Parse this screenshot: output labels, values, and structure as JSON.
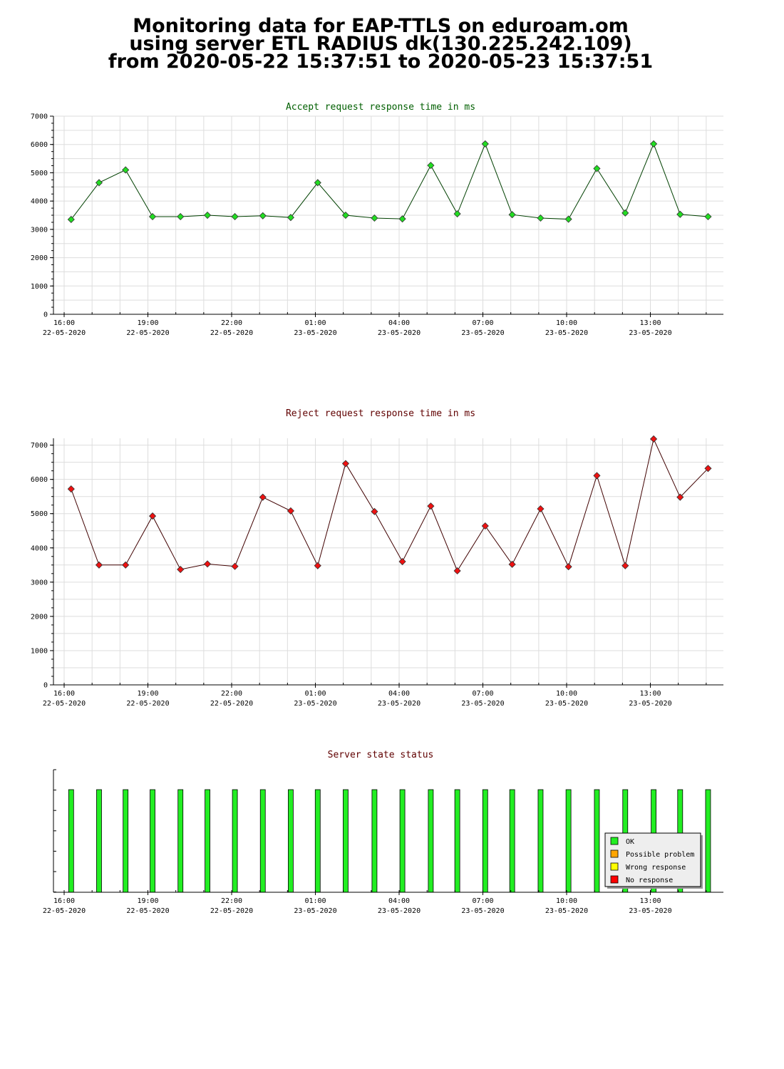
{
  "header": {
    "title_lines": [
      "Monitoring data for EAP-TTLS on eduroam.om",
      "using server ETL RADIUS dk(130.225.242.109)",
      "from 2020-05-22 15:37:51 to 2020-05-23 15:37:51"
    ]
  },
  "colors": {
    "accept_title": "#005f00",
    "accept_line": "#004000",
    "accept_marker": "#22dd22",
    "reject_title": "#600000",
    "reject_line": "#400000",
    "reject_marker": "#ee1111",
    "status_title": "#600000",
    "ok": "#22ee22",
    "possible_problem": "#ffa500",
    "wrong_response": "#ffff00",
    "no_response": "#ff0000",
    "grid": "#dddddd"
  },
  "time_axis": {
    "ticks": [
      {
        "time": "16:00",
        "date": "22-05-2020"
      },
      {
        "time": "19:00",
        "date": "22-05-2020"
      },
      {
        "time": "22:00",
        "date": "22-05-2020"
      },
      {
        "time": "01:00",
        "date": "23-05-2020"
      },
      {
        "time": "04:00",
        "date": "23-05-2020"
      },
      {
        "time": "07:00",
        "date": "23-05-2020"
      },
      {
        "time": "10:00",
        "date": "23-05-2020"
      },
      {
        "time": "13:00",
        "date": "23-05-2020"
      }
    ]
  },
  "chart_data": [
    {
      "type": "line",
      "title": "Accept request response time in ms",
      "ylim": [
        0,
        7000
      ],
      "yticks": [
        0,
        1000,
        2000,
        3000,
        4000,
        5000,
        6000,
        7000
      ],
      "x": [
        "2020-05-22 16:15",
        "2020-05-22 17:15",
        "2020-05-22 18:12",
        "2020-05-22 19:10",
        "2020-05-22 20:10",
        "2020-05-22 21:08",
        "2020-05-22 22:07",
        "2020-05-22 23:07",
        "2020-05-23 00:07",
        "2020-05-23 01:05",
        "2020-05-23 02:05",
        "2020-05-23 03:07",
        "2020-05-23 04:07",
        "2020-05-23 05:08",
        "2020-05-23 06:05",
        "2020-05-23 07:05",
        "2020-05-23 08:03",
        "2020-05-23 09:04",
        "2020-05-23 10:04",
        "2020-05-23 11:05",
        "2020-05-23 12:06",
        "2020-05-23 13:07",
        "2020-05-23 14:04",
        "2020-05-23 15:04"
      ],
      "values": [
        3350,
        4650,
        5100,
        3450,
        3450,
        3500,
        3450,
        3480,
        3420,
        4650,
        3500,
        3400,
        3370,
        5260,
        3550,
        6020,
        3520,
        3400,
        3360,
        5150,
        3580,
        6020,
        3530,
        3450
      ],
      "grid": true
    },
    {
      "type": "line",
      "title": "Reject request response time in ms",
      "ylim": [
        0,
        7200
      ],
      "yticks": [
        0,
        1000,
        2000,
        3000,
        4000,
        5000,
        6000,
        7000
      ],
      "x": [
        "2020-05-22 16:15",
        "2020-05-22 17:15",
        "2020-05-22 18:12",
        "2020-05-22 19:10",
        "2020-05-22 20:10",
        "2020-05-22 21:08",
        "2020-05-22 22:07",
        "2020-05-22 23:07",
        "2020-05-23 00:07",
        "2020-05-23 01:05",
        "2020-05-23 02:05",
        "2020-05-23 03:07",
        "2020-05-23 04:07",
        "2020-05-23 05:08",
        "2020-05-23 06:05",
        "2020-05-23 07:05",
        "2020-05-23 08:03",
        "2020-05-23 09:04",
        "2020-05-23 10:04",
        "2020-05-23 11:05",
        "2020-05-23 12:06",
        "2020-05-23 13:07",
        "2020-05-23 14:04",
        "2020-05-23 15:04"
      ],
      "values": [
        5720,
        3500,
        3500,
        4930,
        3370,
        3530,
        3460,
        5480,
        5080,
        3480,
        6460,
        5060,
        3600,
        5220,
        3330,
        4640,
        3520,
        5140,
        3450,
        6110,
        3480,
        7180,
        5480,
        6320
      ],
      "grid": true
    },
    {
      "type": "bar",
      "title": "Server state status",
      "x": [
        "2020-05-22 16:15",
        "2020-05-22 17:15",
        "2020-05-22 18:12",
        "2020-05-22 19:10",
        "2020-05-22 20:10",
        "2020-05-22 21:08",
        "2020-05-22 22:07",
        "2020-05-22 23:07",
        "2020-05-23 00:07",
        "2020-05-23 01:05",
        "2020-05-23 02:05",
        "2020-05-23 03:07",
        "2020-05-23 04:07",
        "2020-05-23 05:08",
        "2020-05-23 06:05",
        "2020-05-23 07:05",
        "2020-05-23 08:03",
        "2020-05-23 09:04",
        "2020-05-23 10:04",
        "2020-05-23 11:05",
        "2020-05-23 12:06",
        "2020-05-23 13:07",
        "2020-05-23 14:04",
        "2020-05-23 15:04"
      ],
      "states": [
        "OK",
        "OK",
        "OK",
        "OK",
        "OK",
        "OK",
        "OK",
        "OK",
        "OK",
        "OK",
        "OK",
        "OK",
        "OK",
        "OK",
        "OK",
        "OK",
        "OK",
        "OK",
        "OK",
        "OK",
        "OK",
        "OK",
        "OK",
        "OK"
      ],
      "legend": [
        "OK",
        "Possible problem",
        "Wrong response",
        "No response"
      ],
      "legend_position": "bottom-right"
    }
  ]
}
